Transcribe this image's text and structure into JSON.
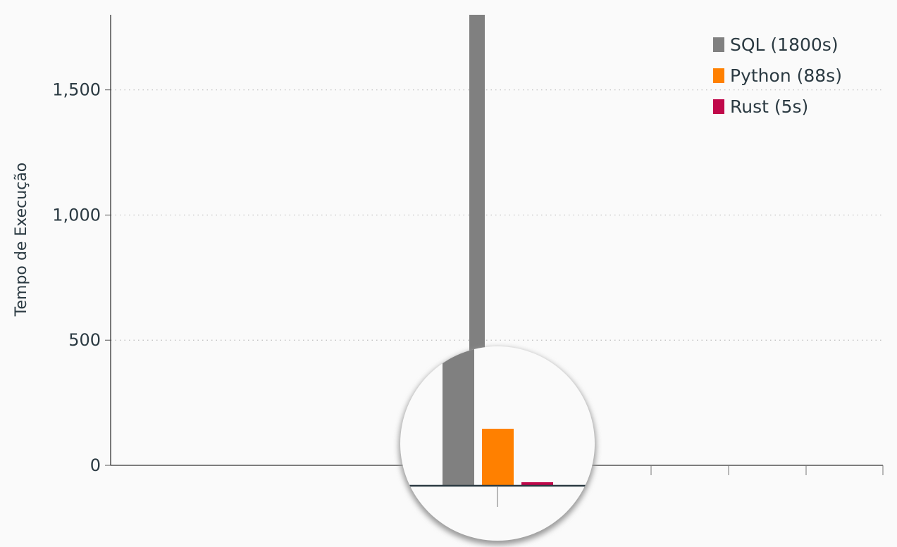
{
  "chart_data": {
    "type": "bar",
    "title": "",
    "ylabel": "Tempo de Execução",
    "xlabel": "",
    "ylim": [
      0,
      1800
    ],
    "yticks": [
      0,
      500,
      1000,
      1500
    ],
    "ytick_labels": [
      "0",
      "500",
      "1,000",
      "1,500"
    ],
    "grid": "horizontal-dotted",
    "legend_position": "top-right",
    "inset": "circular magnifier around the bars at the baseline",
    "series": [
      {
        "name": "SQL (1800s)",
        "value": 1800,
        "color": "#808080"
      },
      {
        "name": "Python (88s)",
        "value": 88,
        "color": "#ff8000"
      },
      {
        "name": "Rust (5s)",
        "value": 5,
        "color": "#c0084a"
      }
    ]
  }
}
